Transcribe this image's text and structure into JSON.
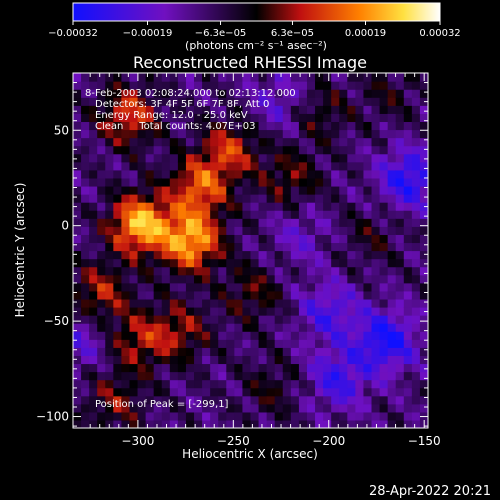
{
  "chart_data": {
    "type": "heatmap",
    "title": "Reconstructed RHESSI Image",
    "xlabel": "Heliocentric X (arcsec)",
    "ylabel": "Heliocentric Y (arcsec)",
    "xlim": [
      -334,
      -148
    ],
    "ylim": [
      -106,
      80
    ],
    "x_ticks": [
      -300,
      -250,
      -200,
      -150
    ],
    "y_ticks": [
      -100,
      -50,
      0,
      50
    ],
    "x_tick_labels": [
      "−300",
      "−250",
      "−200",
      "−150"
    ],
    "y_tick_labels": [
      "−100",
      "−50",
      "0",
      "50"
    ],
    "colorbar": {
      "range": [
        -0.00032,
        0.00032
      ],
      "tick_labels": [
        "−0.00032",
        "−0.00019",
        "−6.3e−05",
        "6.3e−05",
        "0.00019",
        "0.00032"
      ],
      "units_label": "(photons cm⁻² s⁻¹ asec⁻²)",
      "colors": [
        "#1010ff",
        "#7010c0",
        "#000000",
        "#c01010",
        "#ff8000",
        "#ffe040",
        "#ffffff"
      ]
    },
    "annotations": [
      "8-Feb-2003 02:08:24.000 to 02:13:12.000",
      "Detectors: 3F 4F 5F 6F 7F 8F, Att 0",
      "Energy Range: 12.0 - 25.0 keV",
      "Clean     Total counts: 4.07E+03"
    ],
    "peak_label": "Position of Peak = [-299,1]",
    "peak_position": [
      -299,
      1
    ],
    "sources": [
      {
        "x": -299,
        "y": 1,
        "intensity": 0.00032
      },
      {
        "x": -272,
        "y": -8,
        "intensity": 0.0003
      },
      {
        "x": -268,
        "y": 20,
        "intensity": 0.00022
      },
      {
        "x": -305,
        "y": 58,
        "intensity": 0.0002
      },
      {
        "x": -252,
        "y": 40,
        "intensity": 0.00018
      },
      {
        "x": -320,
        "y": -35,
        "intensity": 0.00016
      },
      {
        "x": -300,
        "y": -60,
        "intensity": 0.00015
      },
      {
        "x": -278,
        "y": -55,
        "intensity": 0.00014
      },
      {
        "x": -312,
        "y": -92,
        "intensity": 0.00012
      },
      {
        "x": -240,
        "y": -35,
        "intensity": 0.00011
      },
      {
        "x": -220,
        "y": 25,
        "intensity": 0.00012
      },
      {
        "x": -205,
        "y": 60,
        "intensity": 0.0001
      },
      {
        "x": -230,
        "y": -85,
        "intensity": 8e-05
      },
      {
        "x": -178,
        "y": -5,
        "intensity": 7e-05
      },
      {
        "x": -168,
        "y": 70,
        "intensity": 7e-05
      },
      {
        "x": -200,
        "y": -45,
        "intensity": -0.00014
      },
      {
        "x": -170,
        "y": -60,
        "intensity": -0.00022
      },
      {
        "x": -158,
        "y": 25,
        "intensity": -0.0002
      },
      {
        "x": -195,
        "y": -80,
        "intensity": -0.00016
      },
      {
        "x": -330,
        "y": -60,
        "intensity": -0.0001
      },
      {
        "x": -225,
        "y": 65,
        "intensity": -0.0001
      },
      {
        "x": -215,
        "y": -5,
        "intensity": -8e-05
      }
    ]
  },
  "footer": {
    "timestamp": "28-Apr-2022 20:21"
  }
}
